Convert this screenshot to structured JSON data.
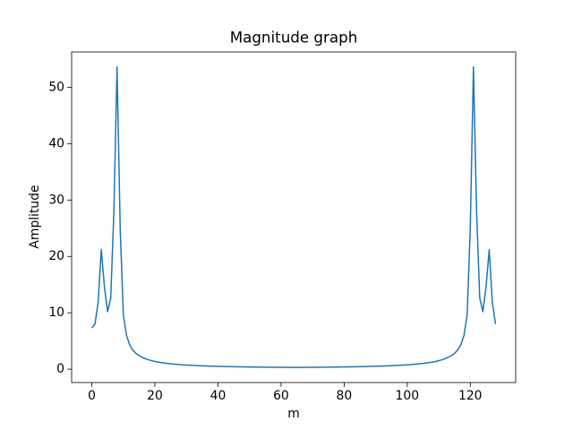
{
  "chart_data": {
    "type": "line",
    "title": "Magnitude graph",
    "x_label": "m",
    "y_label": "Amplitude",
    "x": [
      0,
      1,
      2,
      3,
      4,
      5,
      6,
      7,
      8,
      9,
      10,
      11,
      12,
      13,
      14,
      15,
      16,
      17,
      18,
      19,
      20,
      21,
      22,
      23,
      24,
      25,
      26,
      27,
      28,
      29,
      30,
      31,
      32,
      33,
      34,
      35,
      36,
      37,
      38,
      39,
      40,
      41,
      42,
      43,
      44,
      45,
      46,
      47,
      48,
      49,
      50,
      51,
      52,
      53,
      54,
      55,
      56,
      57,
      58,
      59,
      60,
      61,
      62,
      63,
      64,
      65,
      66,
      67,
      68,
      69,
      70,
      71,
      72,
      73,
      74,
      75,
      76,
      77,
      78,
      79,
      80,
      81,
      82,
      83,
      84,
      85,
      86,
      87,
      88,
      89,
      90,
      91,
      92,
      93,
      94,
      95,
      96,
      97,
      98,
      99,
      100,
      101,
      102,
      103,
      104,
      105,
      106,
      107,
      108,
      109,
      110,
      111,
      112,
      113,
      114,
      115,
      116,
      117,
      118,
      119,
      120,
      121,
      122,
      123,
      124,
      125,
      126,
      127,
      128
    ],
    "series": [
      {
        "color": "#1f77b4",
        "values": [
          7.3,
          8.0,
          11.8,
          21.2,
          14.6,
          10.2,
          12.6,
          28.0,
          53.6,
          25.0,
          9.6,
          6.0,
          4.3,
          3.4,
          2.8,
          2.4,
          2.1,
          1.85,
          1.65,
          1.5,
          1.37,
          1.26,
          1.17,
          1.09,
          1.02,
          0.96,
          0.9,
          0.85,
          0.81,
          0.77,
          0.73,
          0.7,
          0.67,
          0.64,
          0.62,
          0.59,
          0.57,
          0.55,
          0.53,
          0.52,
          0.5,
          0.49,
          0.47,
          0.46,
          0.45,
          0.44,
          0.43,
          0.42,
          0.41,
          0.4,
          0.39,
          0.38,
          0.37,
          0.37,
          0.36,
          0.35,
          0.35,
          0.34,
          0.34,
          0.33,
          0.33,
          0.33,
          0.32,
          0.32,
          0.32,
          0.32,
          0.32,
          0.32,
          0.33,
          0.33,
          0.33,
          0.34,
          0.34,
          0.35,
          0.35,
          0.36,
          0.37,
          0.37,
          0.38,
          0.39,
          0.4,
          0.41,
          0.42,
          0.43,
          0.44,
          0.45,
          0.46,
          0.47,
          0.49,
          0.5,
          0.52,
          0.53,
          0.55,
          0.57,
          0.59,
          0.62,
          0.64,
          0.67,
          0.7,
          0.73,
          0.77,
          0.81,
          0.85,
          0.9,
          0.96,
          1.02,
          1.09,
          1.17,
          1.26,
          1.37,
          1.5,
          1.65,
          1.85,
          2.1,
          2.4,
          2.8,
          3.4,
          4.3,
          6.0,
          9.6,
          25.0,
          53.6,
          28.0,
          12.6,
          10.2,
          14.6,
          21.2,
          11.8,
          8.0
        ]
      }
    ],
    "xlim": [
      -6.4,
      134.4
    ],
    "xticks": [
      0,
      20,
      40,
      60,
      80,
      100,
      120
    ],
    "ylim": [
      -2.37,
      56.27
    ],
    "yticks": [
      0,
      10,
      20,
      30,
      40,
      50
    ]
  }
}
